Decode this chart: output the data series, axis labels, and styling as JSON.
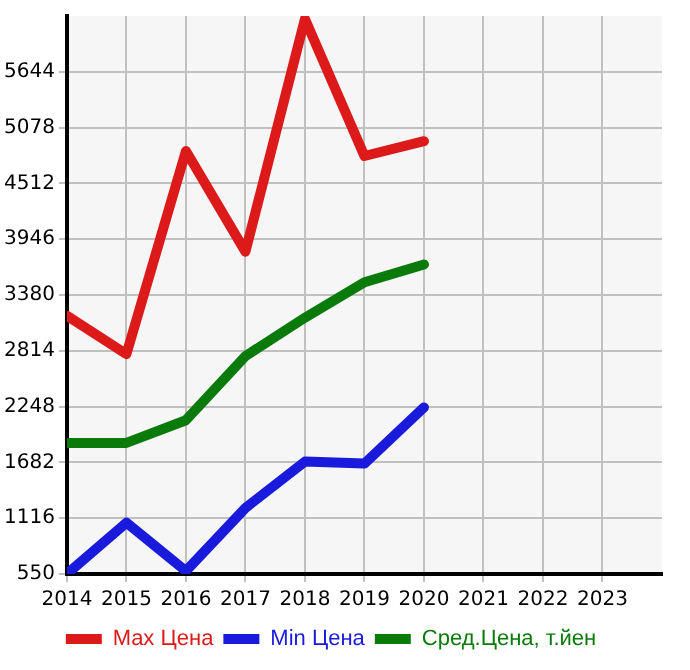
{
  "chart_data": {
    "type": "line",
    "x": [
      2014,
      2015,
      2016,
      2017,
      2018,
      2019,
      2020
    ],
    "series": [
      {
        "name": "Max Цена",
        "color": "#dd1a1a",
        "values": [
          3170,
          2780,
          4840,
          3820,
          6180,
          4790,
          4940
        ]
      },
      {
        "name": "Min Цена",
        "color": "#1a1add",
        "values": [
          550,
          1070,
          580,
          1220,
          1690,
          1670,
          2240
        ]
      },
      {
        "name": "Сред.Цена, т.йен",
        "color": "#0a7a0a",
        "values": [
          1880,
          1880,
          2110,
          2760,
          3150,
          3510,
          3690
        ]
      }
    ],
    "xlim": [
      2014,
      2024
    ],
    "xticks": [
      2014,
      2015,
      2016,
      2017,
      2018,
      2019,
      2020,
      2021,
      2022,
      2023
    ],
    "ylim": [
      550,
      6210
    ],
    "yticks": [
      550,
      1116,
      1682,
      2248,
      2814,
      3380,
      3946,
      4512,
      5078,
      5644
    ],
    "grid": true,
    "legend": "bottom",
    "marker": "none",
    "line_style": "solid"
  }
}
